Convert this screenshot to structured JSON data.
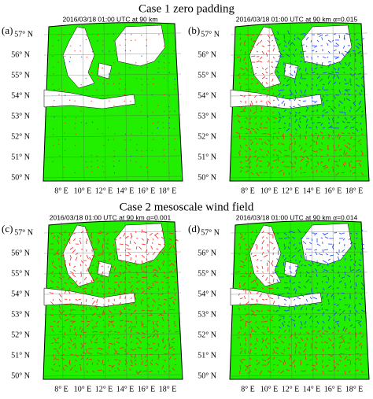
{
  "sections": [
    {
      "title": "Case 1 zero padding",
      "panels": [
        {
          "label": "(a)",
          "header": "2016/03/18 01:00 UTC at 90 km"
        },
        {
          "label": "(b)",
          "header": "2016/03/18 01:00 UTC at 90 km α=0.015"
        }
      ]
    },
    {
      "title": "Case 2 mesoscale wind field",
      "panels": [
        {
          "label": "(c)",
          "header": "2016/03/18 01:00 UTC at 90 km α=0.001"
        },
        {
          "label": "(d)",
          "header": "2016/03/18 01:00 UTC at 90 km α=0.014"
        }
      ]
    }
  ],
  "lat_labels": [
    "57° N",
    "56° N",
    "55° N",
    "54° N",
    "53° N",
    "52° N",
    "51° N",
    "50° N"
  ],
  "lon_labels": [
    "8° E",
    "10° E",
    "12° E",
    "14° E",
    "16° E",
    "18° E"
  ]
}
